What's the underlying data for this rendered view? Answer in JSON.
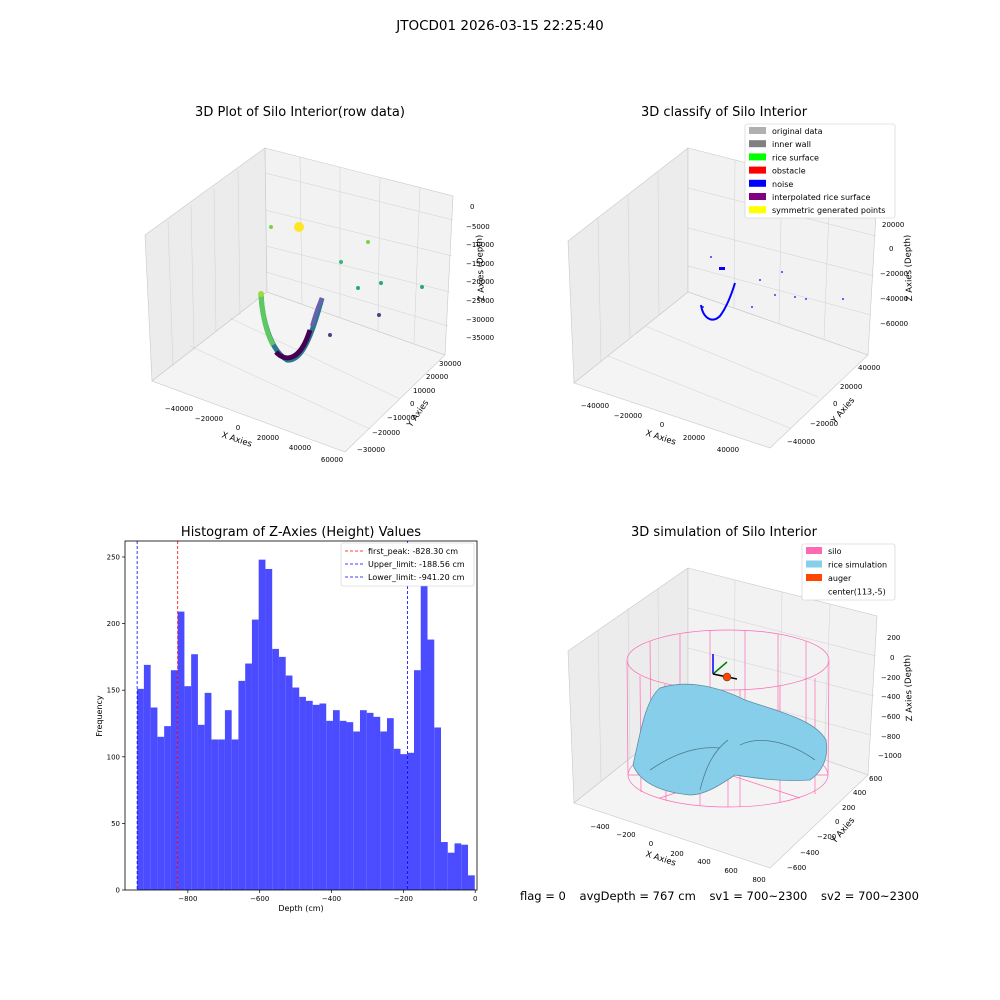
{
  "suptitle": "JTOCD01 2026-03-15 22:25:40",
  "footer": {
    "flag": "flag = 0",
    "avg_depth": "avgDepth = 767 cm",
    "sv1": "sv1 = 700~2300",
    "sv2": "sv2 = 700~2300"
  },
  "colors": {
    "histogram_bar": "#4b4bff",
    "first_peak_line": "#ff0000",
    "limit_line": "#0000ff",
    "noise": "#0000ff",
    "silo": "#ff69b4",
    "rice_simulation": "#87ceeb",
    "auger": "#ff4500"
  },
  "chart_data": [
    {
      "type": "scatter",
      "projection": "3d",
      "title": "3D Plot of Silo Interior(row data)",
      "xlabel": "X Axies",
      "ylabel": "Y Axies",
      "zlabel": "Z Axies (Depth)",
      "x_ticks": [
        "−40000",
        "−20000",
        "0",
        "20000",
        "40000",
        "60000"
      ],
      "y_ticks": [
        "−30000",
        "−20000",
        "−10000",
        "0",
        "10000",
        "20000",
        "30000"
      ],
      "z_ticks": [
        "0",
        "−5000",
        "−10000",
        "−15000",
        "−20000",
        "−25000",
        "−30000",
        "−35000"
      ],
      "colormap": "viridis",
      "grid": true
    },
    {
      "type": "scatter",
      "projection": "3d",
      "title": "3D classify of Silo Interior",
      "xlabel": "X Axies",
      "ylabel": "Y Axies",
      "zlabel": "Z Axies (Depth)",
      "x_ticks": [
        "−40000",
        "−20000",
        "0",
        "20000",
        "40000"
      ],
      "y_ticks": [
        "−40000",
        "−20000",
        "0",
        "20000",
        "40000"
      ],
      "z_ticks": [
        "20000",
        "0",
        "−20000",
        "−40000",
        "−60000"
      ],
      "legend_position": "top-right",
      "legend": [
        {
          "label": "original data",
          "color": "#b0b0b0"
        },
        {
          "label": "inner wall",
          "color": "#808080"
        },
        {
          "label": "rice surface",
          "color": "#00ff00"
        },
        {
          "label": "obstacle",
          "color": "#ff0000"
        },
        {
          "label": "noise",
          "color": "#0000ff"
        },
        {
          "label": "interpolated rice surface",
          "color": "#800080"
        },
        {
          "label": "symmetric generated points",
          "color": "#ffff00"
        }
      ],
      "grid": true
    },
    {
      "type": "bar",
      "title": "Histogram of Z-Axies (Height) Values",
      "xlabel": "Depth (cm)",
      "ylabel": "Frequency",
      "xlim": [
        -975,
        5
      ],
      "ylim": [
        0,
        262
      ],
      "x_ticks": [
        -800,
        -600,
        -400,
        -200,
        0
      ],
      "y_ticks": [
        0,
        50,
        100,
        150,
        200,
        250
      ],
      "bin_start": -941.2,
      "bin_width": 18.8,
      "values": [
        151,
        169,
        137,
        115,
        123,
        165,
        209,
        153,
        177,
        124,
        148,
        113,
        113,
        135,
        113,
        157,
        170,
        203,
        248,
        241,
        181,
        175,
        161,
        152,
        145,
        142,
        139,
        140,
        127,
        135,
        127,
        126,
        119,
        135,
        133,
        130,
        119,
        129,
        106,
        102,
        103,
        165,
        244,
        188,
        122,
        36,
        28,
        35,
        34,
        11
      ],
      "legend_position": "top-right",
      "reference_lines": [
        {
          "label": "first_peak: -828.30 cm",
          "x": -828.3,
          "color": "#ff0000"
        },
        {
          "label": "Upper_limit: -188.56 cm",
          "x": -188.56,
          "color": "#0000ff"
        },
        {
          "label": "Lower_limit: -941.20 cm",
          "x": -941.2,
          "color": "#0000ff"
        }
      ]
    },
    {
      "type": "scatter",
      "projection": "3d",
      "title": "3D simulation of Silo Interior",
      "xlabel": "X Axies",
      "ylabel": "Y Axies",
      "zlabel": "Z Axies (Depth)",
      "x_ticks": [
        "−400",
        "−200",
        "0",
        "200",
        "400",
        "600",
        "800"
      ],
      "y_ticks": [
        "−600",
        "−400",
        "−200",
        "0",
        "200",
        "400",
        "600"
      ],
      "z_ticks": [
        "200",
        "0",
        "−200",
        "−400",
        "−600",
        "−800",
        "−1000"
      ],
      "legend_position": "top-right",
      "legend": [
        {
          "label": "silo",
          "color": "#ff69b4"
        },
        {
          "label": "rice simulation",
          "color": "#87ceeb"
        },
        {
          "label": "auger",
          "color": "#ff4500"
        },
        {
          "label": "center(113,-5)",
          "color": "none"
        }
      ],
      "grid": true
    }
  ]
}
